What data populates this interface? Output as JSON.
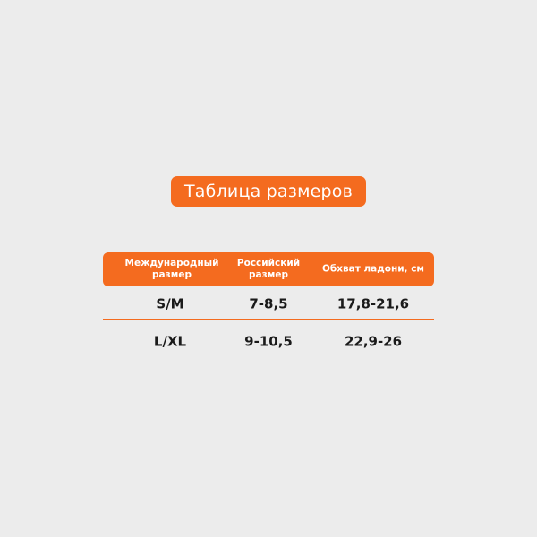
{
  "title": "Таблица размеров",
  "colors": {
    "accent": "#f46b1f",
    "background": "#ececec"
  },
  "table": {
    "headers": [
      "Международный размер",
      "Российский размер",
      "Обхват ладони, см"
    ],
    "rows": [
      [
        "S/M",
        "7-8,5",
        "17,8-21,6"
      ],
      [
        "L/XL",
        "9-10,5",
        "22,9-26"
      ]
    ]
  }
}
